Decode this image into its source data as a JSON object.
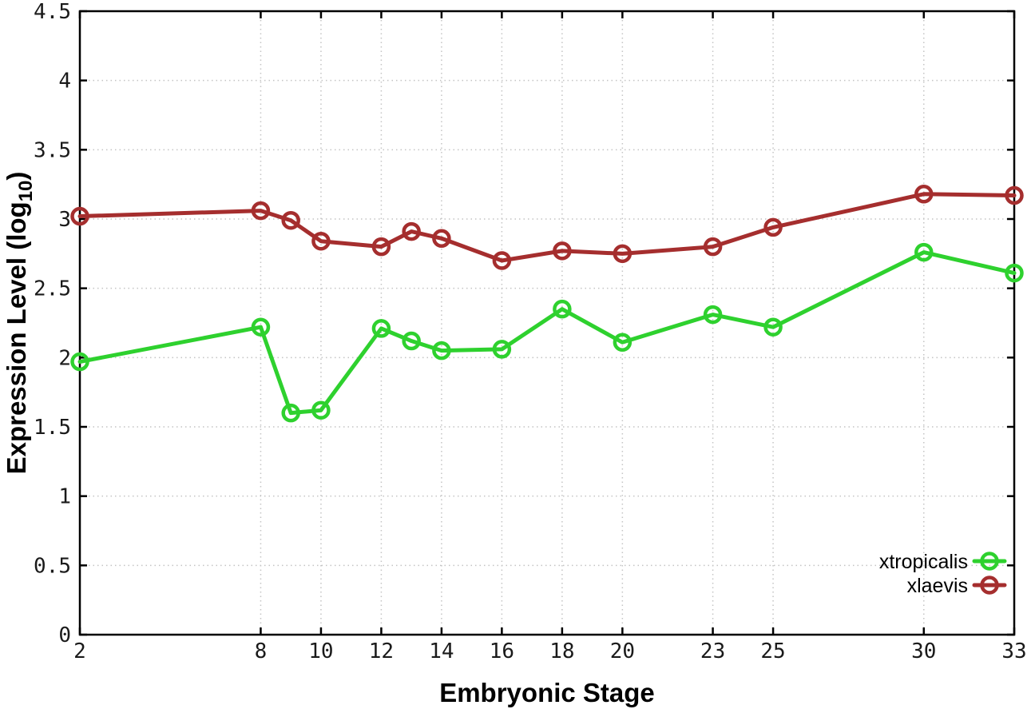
{
  "labels": {
    "xlabel": "Embryonic Stage",
    "ylabel_prefix": "Expression Level (log",
    "ylabel_sub": "10",
    "ylabel_suffix": ")"
  },
  "legend": {
    "entries": [
      "xtropicalis",
      "xlaevis"
    ]
  },
  "colors": {
    "xtropicalis": "#2ed12e",
    "xlaevis": "#a52e2e",
    "grid": "#c4c4c4",
    "axis": "#000000"
  },
  "chart_data": {
    "type": "line",
    "title": "",
    "xlabel": "Embryonic Stage",
    "ylabel": "Expression Level (log10)",
    "x": [
      2,
      8,
      9,
      10,
      12,
      13,
      14,
      16,
      18,
      20,
      23,
      25,
      30,
      33
    ],
    "series": [
      {
        "name": "xtropicalis",
        "color": "#2ed12e",
        "marker": "open-circle",
        "values": [
          1.97,
          2.22,
          1.6,
          1.62,
          2.21,
          2.12,
          2.05,
          2.06,
          2.35,
          2.11,
          2.31,
          2.22,
          2.76,
          2.61
        ]
      },
      {
        "name": "xlaevis",
        "color": "#a52e2e",
        "marker": "open-circle",
        "values": [
          3.02,
          3.06,
          2.99,
          2.84,
          2.8,
          2.91,
          2.86,
          2.7,
          2.77,
          2.75,
          2.8,
          2.94,
          3.18,
          3.17
        ]
      }
    ],
    "xticks": [
      2,
      8,
      10,
      12,
      14,
      16,
      18,
      20,
      23,
      25,
      30,
      33
    ],
    "yticks": [
      0,
      0.5,
      1,
      1.5,
      2,
      2.5,
      3,
      3.5,
      4,
      4.5
    ],
    "xlim": [
      2,
      33
    ],
    "ylim": [
      0,
      4.5
    ],
    "grid": true,
    "grid_style": "dotted",
    "legend_position": "bottom-right"
  }
}
